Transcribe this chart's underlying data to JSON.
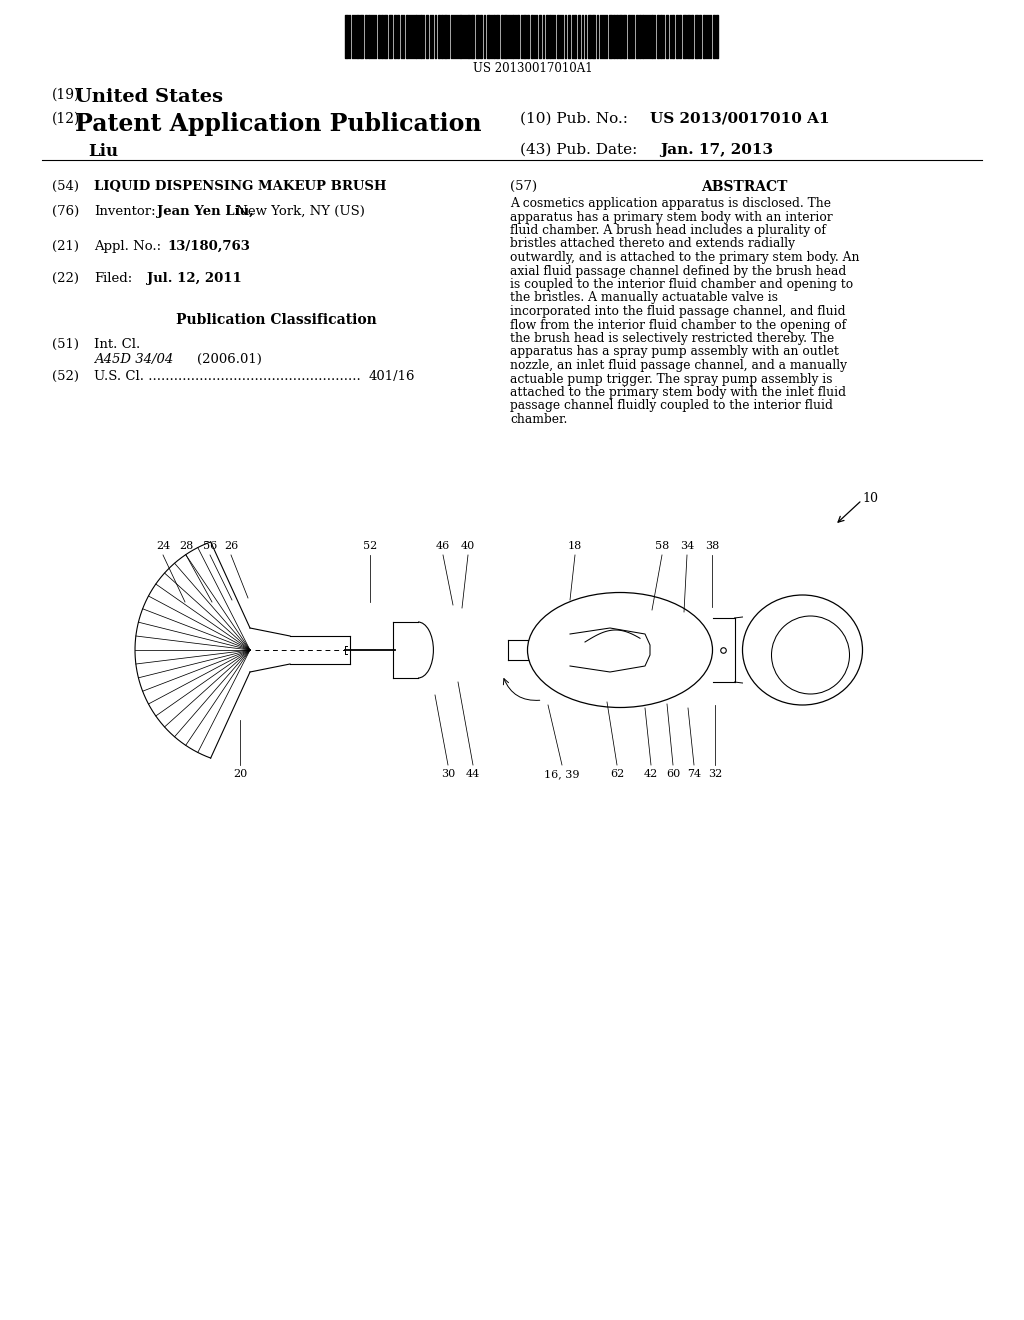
{
  "background_color": "#ffffff",
  "barcode_text": "US 20130017010A1",
  "title_19": "(19)",
  "title_19_bold": "United States",
  "title_12": "(12)",
  "title_12_bold": "Patent Application Publication",
  "inventor_name": "Liu",
  "pub_no_label": "(10) Pub. No.:",
  "pub_no_value": "US 2013/0017010 A1",
  "pub_date_label": "(43) Pub. Date:",
  "pub_date_value": "Jan. 17, 2013",
  "field_54_label": "(54)",
  "field_54_value": "LIQUID DISPENSING MAKEUP BRUSH",
  "field_76_label": "(76)",
  "field_76_text": "Inventor:",
  "field_76_name": "Jean Yen Liu,",
  "field_76_rest": " New York, NY (US)",
  "field_21_label": "(21)",
  "field_21_key": "Appl. No.:",
  "field_21_val": "13/180,763",
  "field_22_label": "(22)",
  "field_22_key": "Filed:",
  "field_22_date": "Jul. 12, 2011",
  "pub_class_title": "Publication Classification",
  "field_51_label": "(51)",
  "field_51_text": "Int. Cl.",
  "field_51_class": "A45D 34/04",
  "field_51_year": "(2006.01)",
  "field_52_label": "(52)",
  "field_52_dots": "U.S. Cl. ..................................................",
  "field_52_val": "401/16",
  "field_57_label": "(57)",
  "field_57_title": "ABSTRACT",
  "abstract_text": "A cosmetics application apparatus is disclosed. The apparatus has a primary stem body with an interior fluid chamber. A brush head includes a plurality of bristles attached thereto and extends radially outwardly, and is attached to the primary stem body. An axial fluid passage channel defined by the brush head is coupled to the interior fluid chamber and opening to the bristles. A manually actuatable valve is incorporated into the fluid passage channel, and fluid flow from the interior fluid chamber to the opening of the brush head is selectively restricted thereby. The apparatus has a spray pump assembly with an outlet nozzle, an inlet fluid passage channel, and a manually actuable pump trigger. The spray pump assembly is attached to the primary stem body with the inlet fluid passage channel fluidly coupled to the interior fluid chamber.",
  "ref_10": "10"
}
